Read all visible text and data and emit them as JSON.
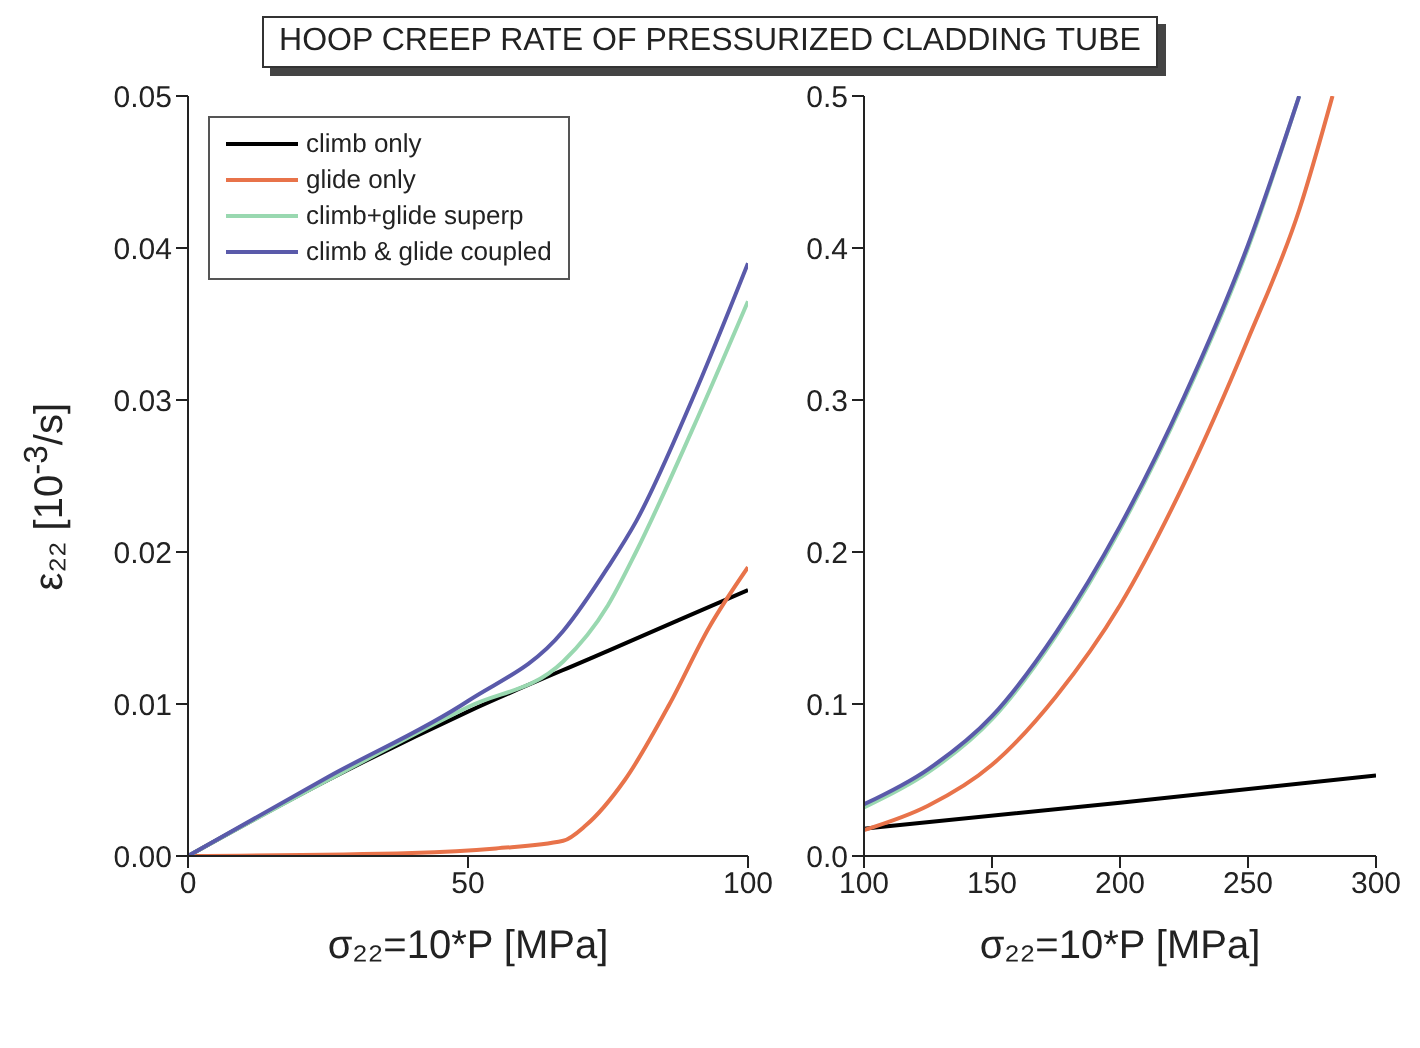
{
  "chart_data": [
    {
      "type": "line",
      "title": "HOOP CREEP RATE OF PRESSURIZED CLADDING TUBE",
      "xlabel": "σ₂₂=10*P [MPa]",
      "ylabel": "ε₂₂ [10$^{-3}$/s]",
      "xlim": [
        0,
        100
      ],
      "ylim": [
        0,
        0.05
      ],
      "xticks": [
        0,
        50,
        100
      ],
      "yticks": [
        {
          "value": 0,
          "label": "0.00"
        },
        {
          "value": 0.01,
          "label": "0.01"
        },
        {
          "value": 0.02,
          "label": "0.02"
        },
        {
          "value": 0.03,
          "label": "0.03"
        },
        {
          "value": 0.04,
          "label": "0.04"
        },
        {
          "value": 0.05,
          "label": "0.05"
        }
      ],
      "legend": "top left",
      "marker": "none",
      "line_style": "solid",
      "series": [
        {
          "name": "climb only",
          "color": "#000000",
          "x": [
            0,
            25,
            50,
            75,
            100
          ],
          "values": [
            0,
            0.005,
            0.0095,
            0.0135,
            0.0175
          ]
        },
        {
          "name": "glide only",
          "color": "#e8734a",
          "x": [
            0,
            40,
            55,
            67,
            71,
            78,
            86,
            93,
            100
          ],
          "values": [
            0,
            0.0002,
            0.0005,
            0.001,
            0.002,
            0.005,
            0.01,
            0.015,
            0.019
          ]
        },
        {
          "name": "climb+glide superp",
          "color": "#99d8b0",
          "x": [
            0,
            25,
            50,
            67,
            75,
            80,
            90,
            100
          ],
          "values": [
            0,
            0.005,
            0.0098,
            0.0128,
            0.0165,
            0.02,
            0.028,
            0.0365
          ]
        },
        {
          "name": "climb & glide coupled",
          "color": "#5a5aaa",
          "x": [
            0,
            25,
            50,
            67,
            75,
            80,
            90,
            100
          ],
          "values": [
            0,
            0.0052,
            0.0102,
            0.0148,
            0.019,
            0.022,
            0.03,
            0.039
          ]
        }
      ]
    },
    {
      "type": "line",
      "xlabel": "σ₂₂=10*P [MPa]",
      "xlim": [
        100,
        300
      ],
      "ylim": [
        0,
        0.5
      ],
      "xticks": [
        100,
        150,
        200,
        250,
        300
      ],
      "yticks": [
        {
          "value": 0,
          "label": "0.0"
        },
        0.1,
        0.2,
        0.3,
        0.4,
        0.5
      ],
      "marker": "none",
      "line_style": "solid",
      "series": [
        {
          "color": "#000000",
          "x": [
            100,
            200,
            300
          ],
          "values": [
            0.018,
            0.035,
            0.053
          ]
        },
        {
          "color": "#e8734a",
          "x": [
            100,
            125,
            150,
            175,
            200,
            225,
            250,
            270,
            283
          ],
          "values": [
            0.017,
            0.033,
            0.06,
            0.105,
            0.165,
            0.245,
            0.34,
            0.425,
            0.5
          ]
        },
        {
          "color": "#99d8b0",
          "x": [
            100,
            125,
            150,
            175,
            200,
            225,
            250,
            270
          ],
          "values": [
            0.032,
            0.055,
            0.09,
            0.145,
            0.215,
            0.3,
            0.4,
            0.5
          ]
        },
        {
          "color": "#5a5aaa",
          "x": [
            100,
            125,
            150,
            175,
            200,
            225,
            250,
            270
          ],
          "values": [
            0.034,
            0.057,
            0.092,
            0.147,
            0.217,
            0.302,
            0.402,
            0.5
          ]
        }
      ]
    }
  ]
}
